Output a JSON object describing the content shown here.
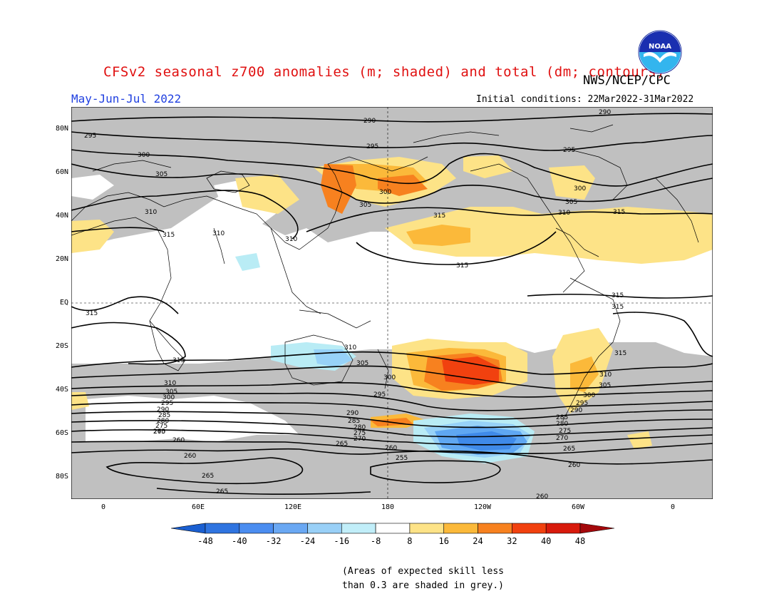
{
  "header": {
    "title": "CFSv2 seasonal z700 anomalies (m; shaded) and total (dm; contours)",
    "agency": "NWS/NCEP/CPC",
    "season": "May-Jun-Jul 2022",
    "initial_conditions": "Initial conditions: 22Mar2022-31Mar2022",
    "logo_text": "NOAA"
  },
  "map": {
    "lat_labels": [
      "80N",
      "60N",
      "40N",
      "20N",
      "EQ",
      "20S",
      "40S",
      "60S",
      "80S"
    ],
    "lon_labels": [
      "0",
      "60E",
      "120E",
      "180",
      "120W",
      "60W",
      "0"
    ],
    "colors": {
      "grey_skill": "#c0c0c0",
      "land": "#000000",
      "pos_8_16": "#fde387",
      "pos_16_24": "#fbb93a",
      "pos_24_32": "#f7811f",
      "pos_32_40": "#f1410f",
      "neg_8_16": "#b9ecf5",
      "neg_16_24": "#97d2f8",
      "neg_24_32": "#5fa7f2",
      "neg_32_40": "#3f8ae9"
    },
    "contour_labels": [
      "290",
      "295",
      "300",
      "305",
      "310",
      "315",
      "265",
      "270",
      "275",
      "280",
      "285",
      "260",
      "255"
    ]
  },
  "colorbar": {
    "labels": [
      "-48",
      "-40",
      "-32",
      "-24",
      "-16",
      "-8",
      "8",
      "16",
      "24",
      "32",
      "40",
      "48"
    ],
    "colors": [
      "#1a5fd1",
      "#2f74e0",
      "#4b8df0",
      "#6aa8f3",
      "#99d0f7",
      "#c1eef9",
      "#ffffff",
      "#fde387",
      "#fbb93a",
      "#f7811f",
      "#f1410f",
      "#d81a0c",
      "#a4080b"
    ]
  },
  "footer": {
    "note_line1": "(Areas of expected skill less",
    "note_line2": "than 0.3 are shaded in grey.)"
  }
}
